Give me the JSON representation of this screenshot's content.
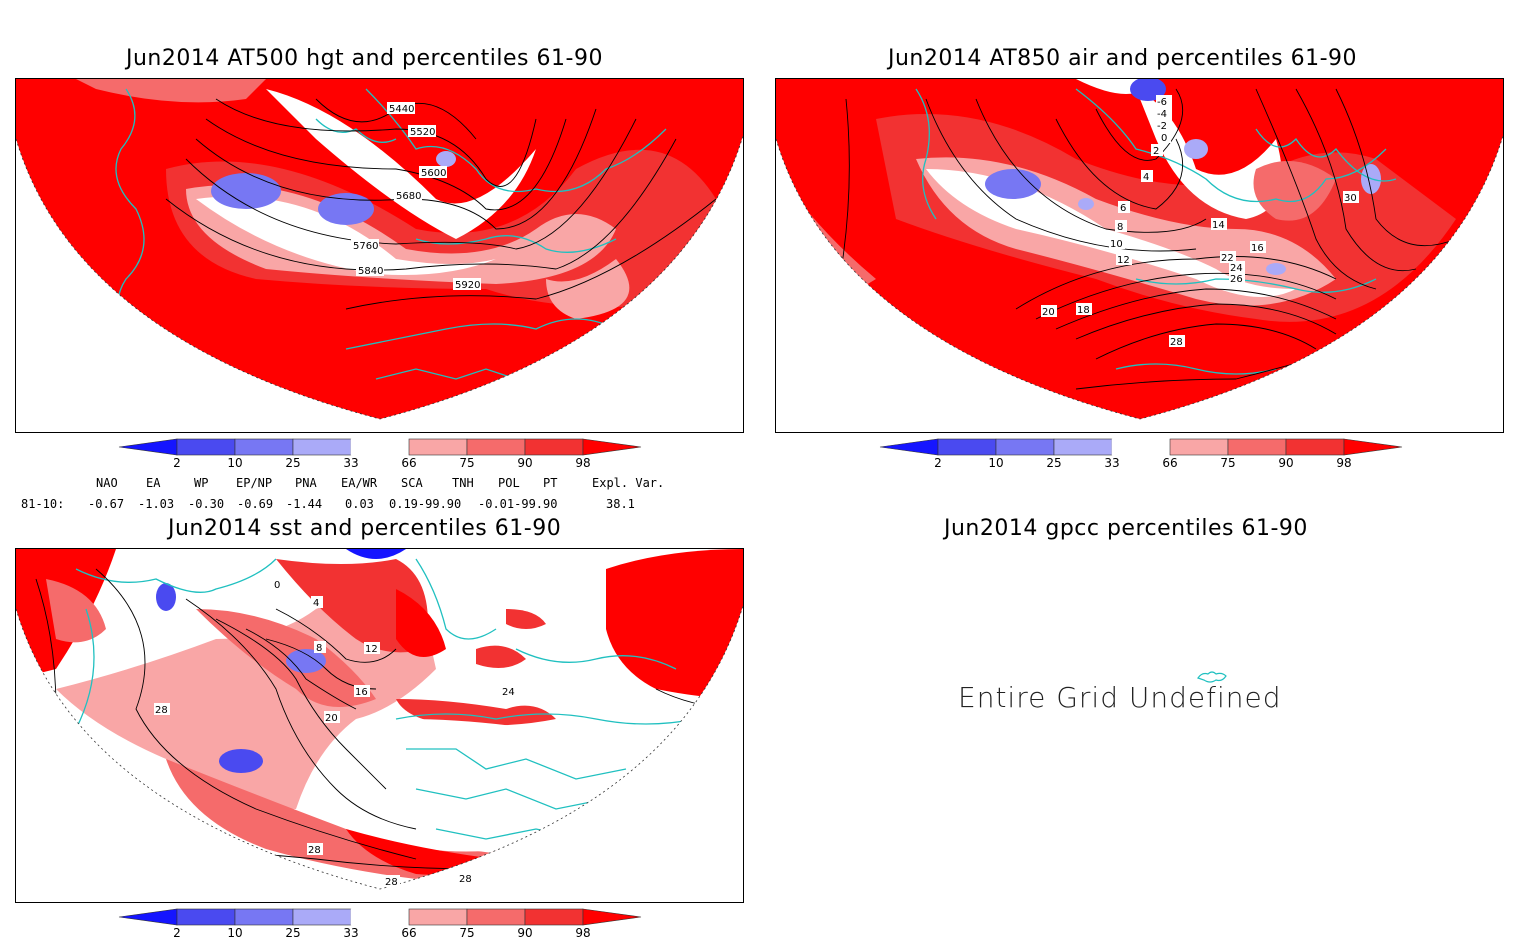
{
  "panels": {
    "hgt": {
      "title": "Jun2014 AT500 hgt and percentiles 61-90",
      "contour_labels": [
        "5440",
        "5520",
        "5600",
        "5680",
        "5760",
        "5840",
        "5920"
      ]
    },
    "air": {
      "title": "Jun2014 AT850 air and percentiles 61-90",
      "contour_labels": [
        "-6",
        "-4",
        "-2",
        "0",
        "2",
        "4",
        "6",
        "8",
        "10",
        "12",
        "14",
        "16",
        "18",
        "20",
        "22",
        "24",
        "26",
        "28",
        "30"
      ]
    },
    "sst": {
      "title": "Jun2014 sst and percentiles 61-90",
      "contour_labels": [
        "0",
        "4",
        "8",
        "12",
        "16",
        "20",
        "24",
        "28"
      ]
    },
    "gpcc": {
      "title": "Jun2014 gpcc percentiles 61-90",
      "message": "Entire Grid Undefined"
    }
  },
  "colorbar": {
    "ticks": [
      "2",
      "10",
      "25",
      "33",
      "66",
      "75",
      "90",
      "98"
    ],
    "colors": [
      "#1515ff",
      "#4a4af0",
      "#7777f3",
      "#aaaaf8",
      "#ffffff",
      "#f9a6a6",
      "#f56b6b",
      "#f23232",
      "#ff0000"
    ]
  },
  "indices": {
    "header": [
      "NAO",
      "EA",
      "WP",
      "EP/NP",
      "PNA",
      "EA/WR",
      "SCA",
      "TNH",
      "POL",
      "PT",
      "Expl. Var."
    ],
    "row_label": "81-10:",
    "values": [
      "-0.67",
      "-1.03",
      "-0.30",
      "-0.69",
      "-1.44",
      "0.03",
      "0.19-99.90",
      "-0.01-99.90",
      "38.1"
    ]
  }
}
